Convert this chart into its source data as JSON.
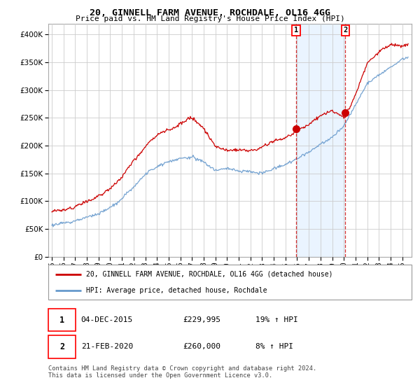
{
  "title1": "20, GINNELL FARM AVENUE, ROCHDALE, OL16 4GG",
  "title2": "Price paid vs. HM Land Registry's House Price Index (HPI)",
  "ylim": [
    0,
    420000
  ],
  "yticks": [
    0,
    50000,
    100000,
    150000,
    200000,
    250000,
    300000,
    350000,
    400000
  ],
  "legend_line1": "20, GINNELL FARM AVENUE, ROCHDALE, OL16 4GG (detached house)",
  "legend_line2": "HPI: Average price, detached house, Rochdale",
  "footnote": "Contains HM Land Registry data © Crown copyright and database right 2024.\nThis data is licensed under the Open Government Licence v3.0.",
  "sale1_date": "04-DEC-2015",
  "sale1_price": "£229,995",
  "sale1_hpi": "19% ↑ HPI",
  "sale2_date": "21-FEB-2020",
  "sale2_price": "£260,000",
  "sale2_hpi": "8% ↑ HPI",
  "sale1_year": 2015.92,
  "sale1_value": 229995,
  "sale2_year": 2020.13,
  "sale2_value": 260000,
  "vline1_year": 2015.92,
  "vline2_year": 2020.13,
  "hpi_color": "#6699cc",
  "price_color": "#cc0000",
  "shade_color": "#ddeeff",
  "background_color": "#ffffff",
  "grid_color": "#cccccc"
}
